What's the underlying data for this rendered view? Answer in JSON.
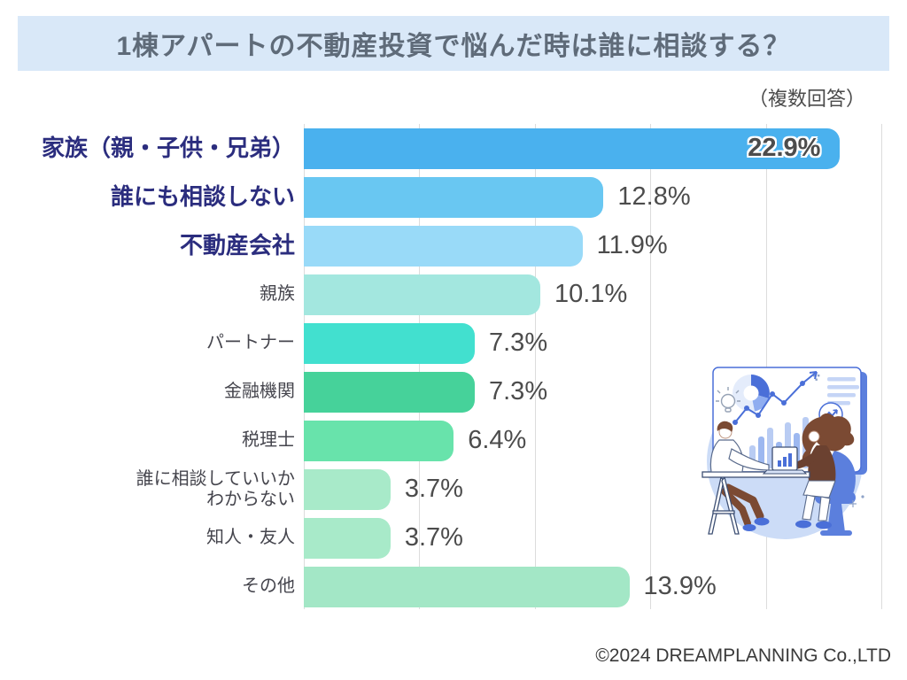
{
  "header": {
    "title": "1棟アパートの不動産投資で悩んだ時は誰に相談する？",
    "title_band_color": "#d9e8f8",
    "title_color": "#5f6b79",
    "note": "（複数回答）"
  },
  "chart_data": {
    "type": "bar",
    "orientation": "horizontal",
    "title": "1棟アパートの不動産投資で悩んだ時は誰に相談する？",
    "note": "（複数回答）",
    "xlim": [
      0,
      25
    ],
    "grid_step": 5,
    "grid_on": true,
    "grid_color": "#dcdcdc",
    "label_color": "#45454d",
    "emphasized_label_color": "#2b2d7e",
    "value_label_color": "#4c4c4c",
    "categories": [
      "家族（親・子供・兄弟）",
      "誰にも相談しない",
      "不動産会社",
      "親族",
      "パートナー",
      "金融機関",
      "税理士",
      "誰に相談していいかわからない",
      "知人・友人",
      "その他"
    ],
    "values": [
      22.9,
      12.8,
      11.9,
      10.1,
      7.3,
      7.3,
      6.4,
      3.7,
      3.7,
      13.9
    ],
    "items": [
      {
        "label": "家族（親・子供・兄弟）",
        "value": 22.9,
        "display": "22.9%",
        "color": "#4ab1ee",
        "emphasized": true,
        "value_inside": true
      },
      {
        "label": "誰にも相談しない",
        "value": 12.8,
        "display": "12.8%",
        "color": "#69c7f2",
        "emphasized": true
      },
      {
        "label": "不動産会社",
        "value": 11.9,
        "display": "11.9%",
        "color": "#99daf8",
        "emphasized": true
      },
      {
        "label": "親族",
        "value": 10.1,
        "display": "10.1%",
        "color": "#a3e7df"
      },
      {
        "label": "パートナー",
        "value": 7.3,
        "display": "7.3%",
        "color": "#42e0cf"
      },
      {
        "label": "金融機関",
        "value": 7.3,
        "display": "7.3%",
        "color": "#46d29a"
      },
      {
        "label": "税理士",
        "value": 6.4,
        "display": "6.4%",
        "color": "#68e3ab"
      },
      {
        "label": "誰に相談していいかわからない",
        "label_lines": [
          "誰に相談していいか",
          "わからない"
        ],
        "value": 3.7,
        "display": "3.7%",
        "color": "#a8eac9"
      },
      {
        "label": "知人・友人",
        "value": 3.7,
        "display": "3.7%",
        "color": "#a8eac9"
      },
      {
        "label": "その他",
        "value": 13.9,
        "display": "13.9%",
        "color": "#a3e7c6"
      }
    ]
  },
  "illustration": {
    "name": "consultation-illustration",
    "accent_blue": "#4a6fd8",
    "light_blue": "#ccdcf7",
    "brown": "#7b4a33"
  },
  "footer": {
    "copyright": "©2024 DREAMPLANNING Co.,LTD"
  }
}
